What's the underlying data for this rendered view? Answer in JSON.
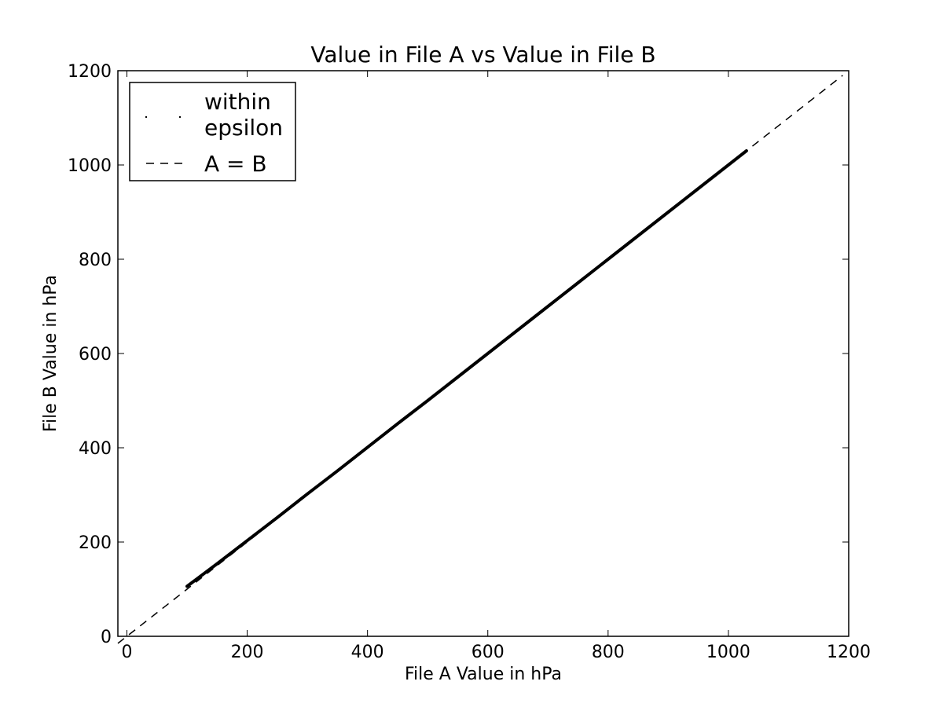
{
  "chart_data": {
    "type": "scatter",
    "title": "Value in File A vs Value in File B",
    "xlabel": "File A Value in hPa",
    "ylabel": "File B Value in hPa",
    "xlim": [
      -15,
      1200
    ],
    "ylim": [
      0,
      1200
    ],
    "x_ticks": [
      "0",
      "200",
      "400",
      "600",
      "800",
      "1000",
      "1200"
    ],
    "y_ticks": [
      "0",
      "200",
      "400",
      "600",
      "800",
      "1000",
      "1200"
    ],
    "grid": false,
    "legend_position": "upper-left",
    "series": [
      {
        "name": "within epsilon",
        "name_lines": [
          "within",
          "epsilon"
        ],
        "style": "points",
        "color": "#000000",
        "x": [
          100,
          150,
          200,
          250,
          300,
          350,
          400,
          450,
          500,
          550,
          600,
          650,
          700,
          750,
          800,
          850,
          900,
          950,
          1000,
          1030
        ],
        "y": [
          106,
          154,
          203,
          252,
          302,
          351,
          401,
          451,
          500,
          550,
          600,
          650,
          700,
          750,
          800,
          850,
          900,
          950,
          1000,
          1030
        ]
      },
      {
        "name": "A = B",
        "style": "dashed",
        "color": "#000000",
        "x": [
          -15,
          1190
        ],
        "y": [
          -15,
          1190
        ]
      }
    ]
  }
}
